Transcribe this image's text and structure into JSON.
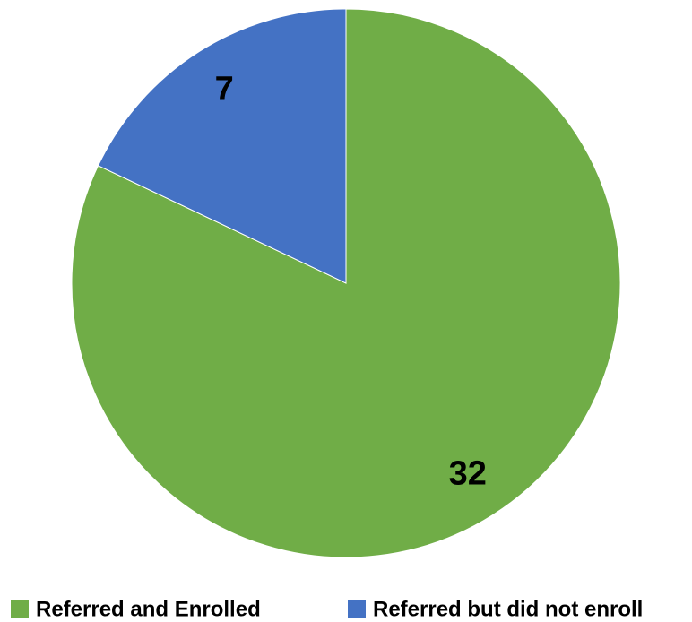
{
  "chart_data": {
    "type": "pie",
    "categories": [
      "Referred and Enrolled",
      "Referred but did not enroll"
    ],
    "values": [
      32,
      7
    ],
    "colors": [
      "#70ad47",
      "#4472c4"
    ],
    "legend": "bottom"
  }
}
